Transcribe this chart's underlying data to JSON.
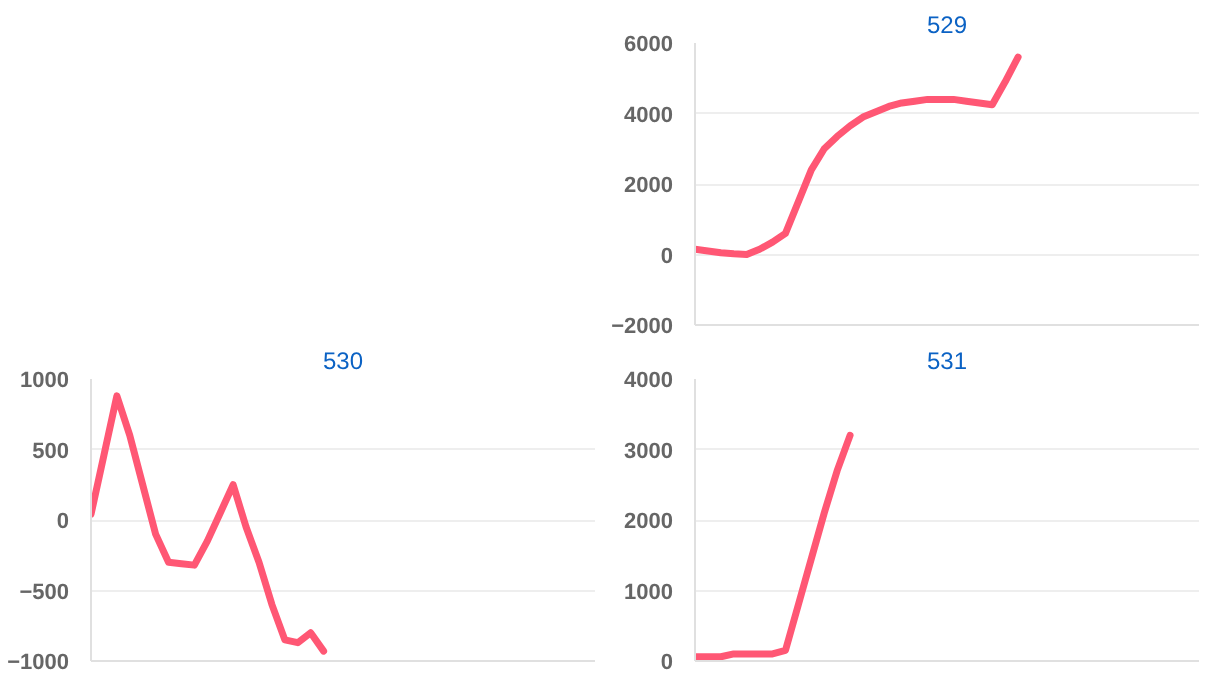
{
  "chart_data": [
    {
      "type": "line",
      "title": "529",
      "categories": [
        null,
        null,
        null,
        null,
        null,
        null,
        null,
        null,
        null,
        null,
        null,
        null,
        null,
        null,
        null,
        null,
        null,
        null,
        null,
        null,
        null,
        null,
        null,
        null,
        null,
        null,
        null,
        null,
        null,
        null,
        null,
        null,
        null,
        null,
        null,
        null,
        null,
        null,
        null,
        null
      ],
      "series": [
        {
          "color": "#ff5774",
          "values": [
            150,
            100,
            50,
            20,
            0,
            150,
            350,
            600,
            1500,
            2400,
            3000,
            3350,
            3650,
            3900,
            4050,
            4200,
            4300,
            4350,
            4400,
            4400,
            4400,
            4350,
            4300,
            4250,
            4900,
            5600,
            null,
            null,
            null,
            null,
            null,
            null,
            null,
            null,
            null,
            null,
            null,
            null,
            null,
            null
          ]
        }
      ],
      "ylim": [
        -2000,
        6000
      ],
      "yticks": [
        -2000,
        0,
        2000,
        4000,
        6000
      ],
      "grid": "y",
      "tick_labels": "y"
    },
    {
      "type": "line",
      "title": "530",
      "categories": [
        null,
        null,
        null,
        null,
        null,
        null,
        null,
        null,
        null,
        null,
        null,
        null,
        null,
        null,
        null,
        null,
        null,
        null,
        null,
        null,
        null,
        null,
        null,
        null,
        null,
        null,
        null,
        null,
        null,
        null,
        null,
        null,
        null,
        null,
        null,
        null,
        null,
        null,
        null,
        null
      ],
      "series": [
        {
          "color": "#ff5774",
          "values": [
            40,
            460,
            880,
            600,
            250,
            -100,
            -300,
            -310,
            -320,
            -150,
            50,
            250,
            -50,
            -300,
            -600,
            -850,
            -870,
            -800,
            -930,
            null,
            null,
            null,
            null,
            null,
            null,
            null,
            null,
            null,
            null,
            null,
            null,
            null,
            null,
            null,
            null,
            null,
            null,
            null,
            null,
            null
          ]
        }
      ],
      "ylim": [
        -1000,
        1000
      ],
      "yticks": [
        -1000,
        -500,
        0,
        500,
        1000
      ],
      "grid": "y",
      "tick_labels": "y"
    },
    {
      "type": "line",
      "title": "531",
      "categories": [
        null,
        null,
        null,
        null,
        null,
        null,
        null,
        null,
        null,
        null,
        null,
        null,
        null,
        null,
        null,
        null,
        null,
        null,
        null,
        null,
        null,
        null,
        null,
        null,
        null,
        null,
        null,
        null,
        null,
        null,
        null,
        null,
        null,
        null,
        null,
        null,
        null,
        null,
        null,
        null
      ],
      "series": [
        {
          "color": "#ff5774",
          "values": [
            60,
            60,
            60,
            100,
            100,
            100,
            100,
            150,
            800,
            1450,
            2100,
            2700,
            3200,
            null,
            null,
            null,
            null,
            null,
            null,
            null,
            null,
            null,
            null,
            null,
            null,
            null,
            null,
            null,
            null,
            null,
            null,
            null,
            null,
            null,
            null,
            null,
            null,
            null,
            null,
            null
          ]
        }
      ],
      "ylim": [
        0,
        4000
      ],
      "yticks": [
        0,
        1000,
        2000,
        3000,
        4000
      ],
      "grid": "y",
      "tick_labels": "y"
    }
  ]
}
